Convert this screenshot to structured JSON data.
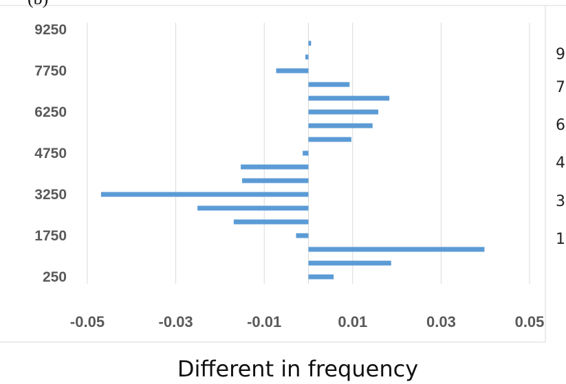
{
  "panel_label": "(b)",
  "chart_data": {
    "type": "bar",
    "orientation": "horizontal",
    "title": "",
    "xlabel": "Different in frequency",
    "ylabel": "",
    "xlim": [
      -0.05,
      0.05
    ],
    "x_ticks": [
      "-0.05",
      "-0.03",
      "-0.01",
      "0.01",
      "0.03",
      "0.05"
    ],
    "y_tick_labels": [
      "9250",
      "7750",
      "6250",
      "4750",
      "3250",
      "1750",
      "250"
    ],
    "categories": [
      250,
      750,
      1250,
      1750,
      2250,
      2750,
      3250,
      3750,
      4250,
      4750,
      5250,
      5750,
      6250,
      6750,
      7250,
      7750,
      8250,
      8750,
      9250
    ],
    "values": [
      0.0057,
      0.0187,
      0.0398,
      -0.0028,
      -0.0169,
      -0.0251,
      -0.0469,
      -0.015,
      -0.0153,
      -0.0013,
      0.0097,
      0.0145,
      0.0158,
      0.0183,
      0.0093,
      -0.0073,
      -0.0007,
      0.0006,
      null
    ],
    "bar_color": "#5b9bd5",
    "grid": "vertical",
    "neighbor_panel_clipped_labels": [
      "9",
      "7",
      "6",
      "4",
      "3",
      "1"
    ]
  }
}
